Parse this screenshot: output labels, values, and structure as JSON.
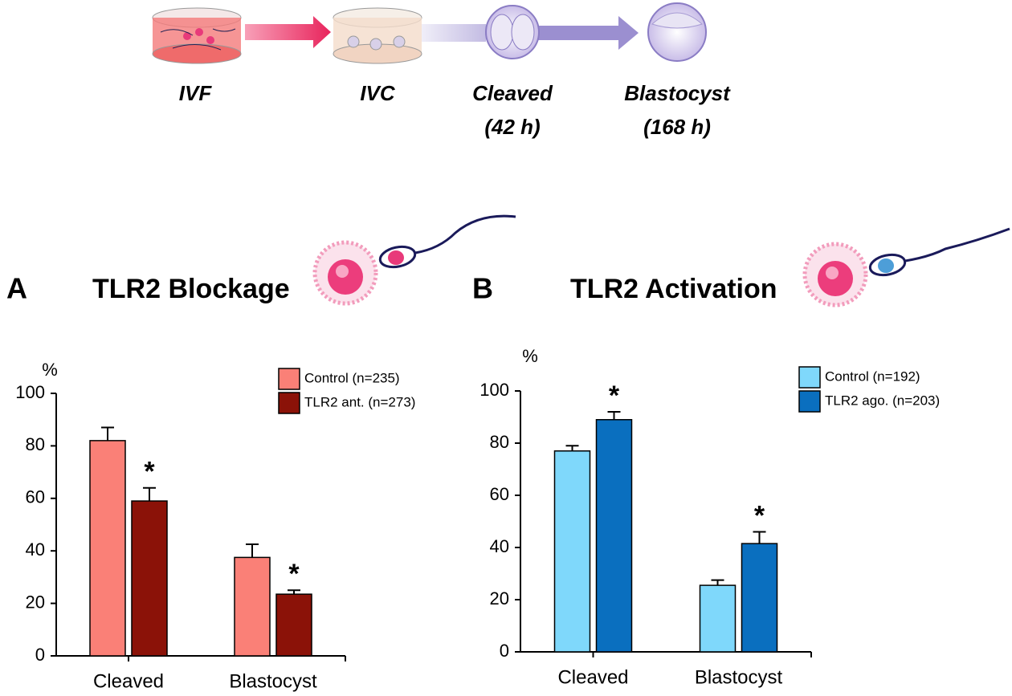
{
  "diagram": {
    "stages": [
      [
        "IVF"
      ],
      [
        "IVC"
      ],
      [
        "Cleaved",
        "(42 h)"
      ],
      [
        "Blastocyst",
        "(168 h)"
      ]
    ]
  },
  "chart_data": [
    {
      "type": "bar",
      "panel": "A",
      "title": "TLR2 Blockage",
      "title_color": "#8b1a10",
      "ylabel": "%",
      "categories": [
        "Cleaved",
        "Blastocyst"
      ],
      "series": [
        {
          "name": "Control (n=235)",
          "color": "#fa8077",
          "values": [
            82,
            37.5
          ],
          "errors": [
            5,
            5
          ]
        },
        {
          "name": "TLR2 ant. (n=273)",
          "color": "#8b1208",
          "values": [
            59,
            23.5
          ],
          "errors": [
            5,
            1.5
          ],
          "significance": [
            "*",
            "*"
          ],
          "significance_color": "#8b1208"
        }
      ],
      "ylim": [
        0,
        100
      ],
      "yticks": [
        0,
        20,
        40,
        60,
        80,
        100
      ]
    },
    {
      "type": "bar",
      "panel": "B",
      "title": "TLR2 Activation",
      "title_color": "#1a73c0",
      "ylabel": "%",
      "categories": [
        "Cleaved",
        "Blastocyst"
      ],
      "series": [
        {
          "name": "Control (n=192)",
          "color": "#7fd8fb",
          "values": [
            77,
            25.5
          ],
          "errors": [
            2,
            2
          ]
        },
        {
          "name": "TLR2 ago. (n=203)",
          "color": "#0a6fbf",
          "values": [
            89,
            41.5
          ],
          "errors": [
            3,
            4.5
          ],
          "significance": [
            "*",
            "*"
          ],
          "significance_color": "#1a73c0"
        }
      ],
      "ylim": [
        0,
        100
      ],
      "yticks": [
        0,
        20,
        40,
        60,
        80,
        100
      ]
    }
  ]
}
